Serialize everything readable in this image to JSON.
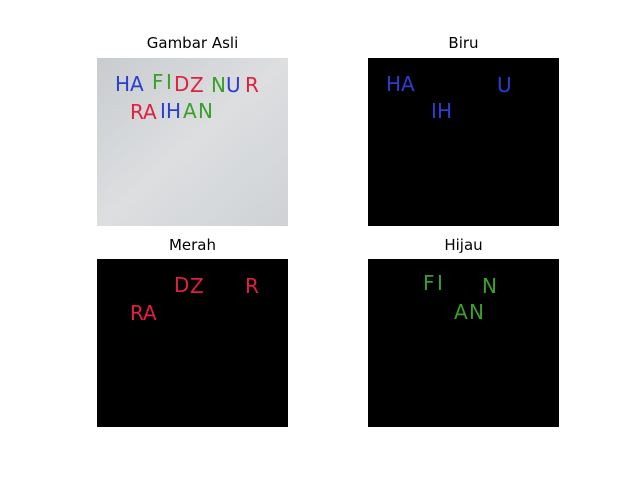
{
  "panels": [
    {
      "title": "Gambar Asli",
      "kind": "original"
    },
    {
      "title": "Biru",
      "kind": "blue-mask"
    },
    {
      "title": "Merah",
      "kind": "red-mask"
    },
    {
      "title": "Hijau",
      "kind": "green-mask"
    }
  ],
  "handwriting": {
    "line1": "HAFIDZ NUR",
    "line2": "RAIHAN"
  },
  "colors": {
    "blue_ink": "#2a3fd0",
    "red_ink": "#e0203c",
    "green_ink": "#3aa02a",
    "paper": "#d6d8da",
    "mask_bg": "#000000"
  }
}
